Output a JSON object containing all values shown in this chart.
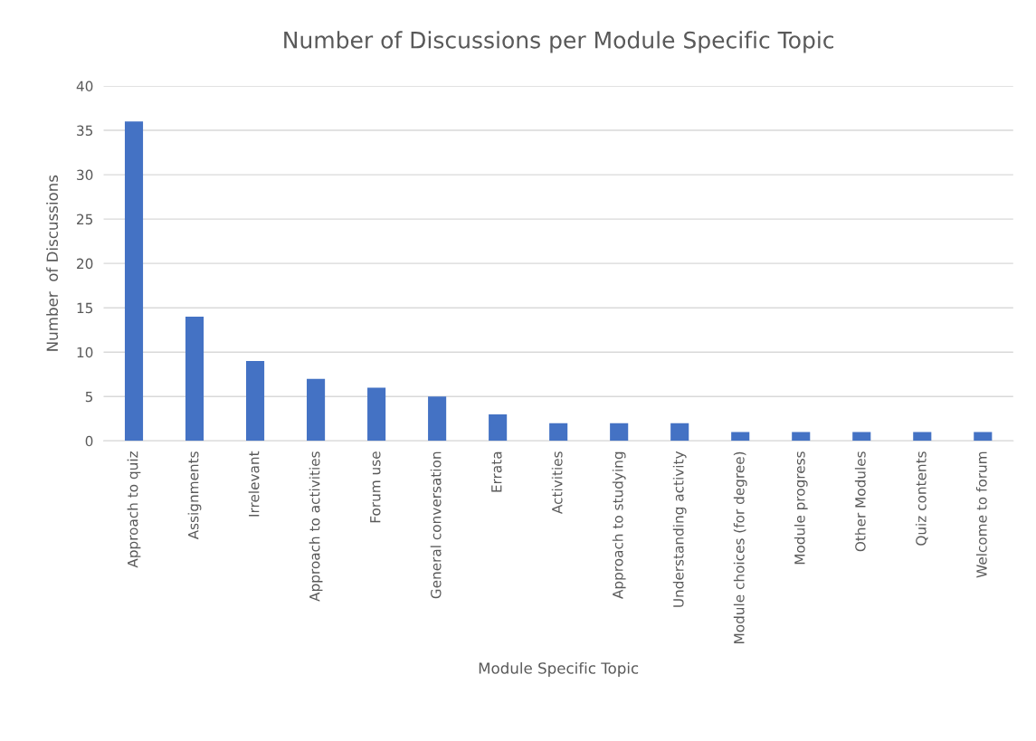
{
  "chart_data": {
    "type": "bar",
    "title": "Number of Discussions per Module Specific Topic",
    "xlabel": "Module Specific Topic",
    "ylabel": "Number  of Discussions",
    "categories": [
      "Approach to quiz",
      "Assignments",
      "Irrelevant",
      "Approach to activities",
      "Forum use",
      "General conversation",
      "Errata",
      "Activities",
      "Approach to studying",
      "Understanding activity",
      "Module choices (for degree)",
      "Module progress",
      "Other Modules",
      "Quiz contents",
      "Welcome to forum"
    ],
    "values": [
      36,
      14,
      9,
      7,
      6,
      5,
      3,
      2,
      2,
      2,
      1,
      1,
      1,
      1,
      1
    ],
    "color": "#4472c4",
    "ylim": [
      0,
      40
    ],
    "yticks": [
      0,
      5,
      10,
      15,
      20,
      25,
      30,
      35,
      40
    ],
    "grid": "y"
  }
}
